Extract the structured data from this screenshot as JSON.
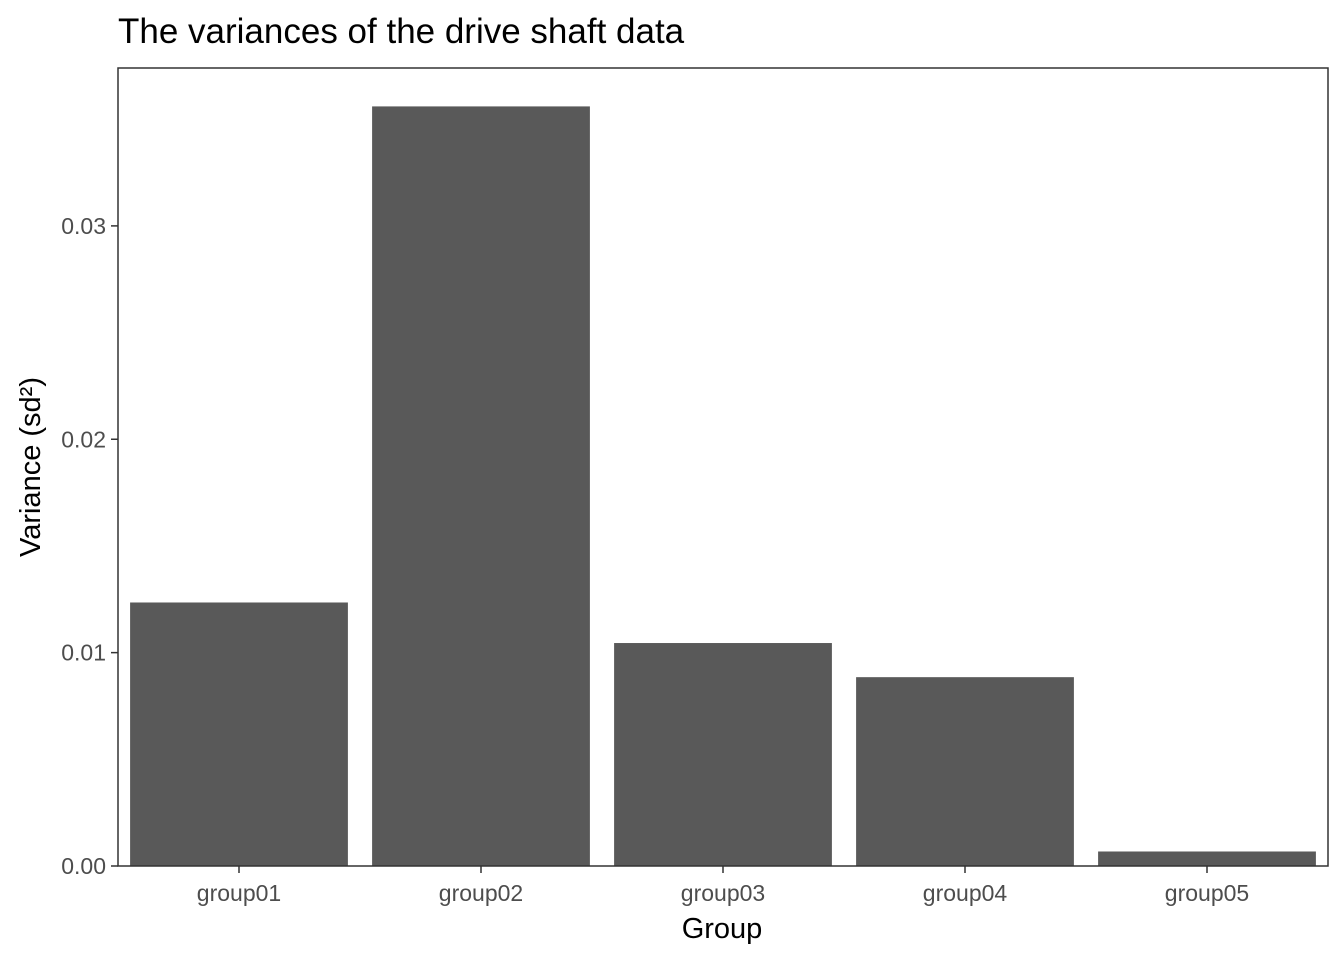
{
  "chart_data": {
    "type": "bar",
    "title": "The variances of the drive shaft data",
    "xlabel": "Group",
    "ylabel": "Variance (sd²)",
    "categories": [
      "group01",
      "group02",
      "group03",
      "group04",
      "group05"
    ],
    "values": [
      0.01235,
      0.0356,
      0.01045,
      0.00885,
      0.00068
    ],
    "ylim": [
      0,
      0.0374
    ],
    "yticks": [
      0,
      0.01,
      0.02,
      0.03
    ],
    "ytick_labels": [
      "0.00",
      "0.01",
      "0.02",
      "0.03"
    ],
    "grid": false,
    "bar_color": "#595959",
    "panel_border_color": "#333333"
  }
}
